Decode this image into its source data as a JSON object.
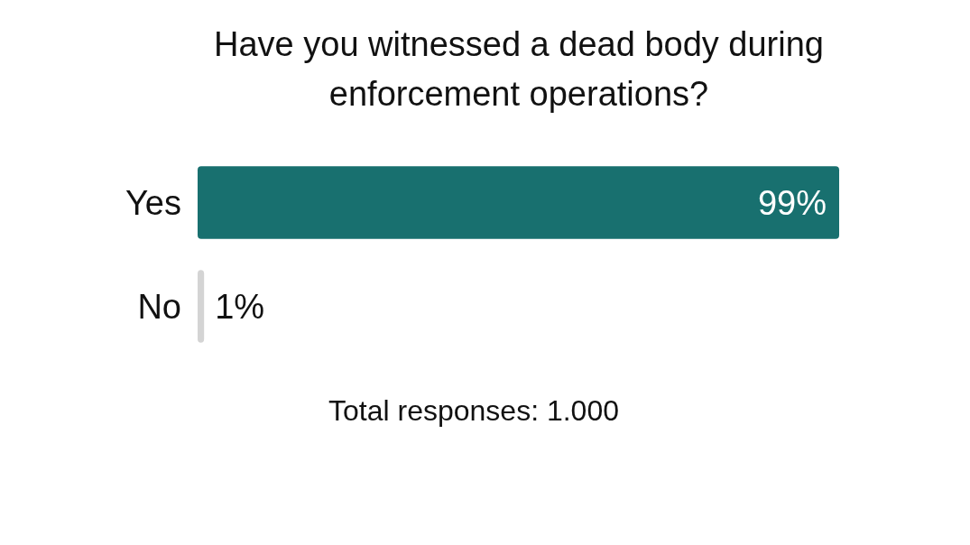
{
  "chart_data": {
    "type": "bar",
    "orientation": "horizontal",
    "title": "Have you witnessed a dead body during enforcement operations?",
    "categories": [
      "Yes",
      "No"
    ],
    "values": [
      99,
      1
    ],
    "colors": [
      "#18706f",
      "#d4d4d4"
    ],
    "value_labels": [
      "99%",
      "1%"
    ],
    "annotations": [
      "Total responses: 1.000"
    ]
  }
}
